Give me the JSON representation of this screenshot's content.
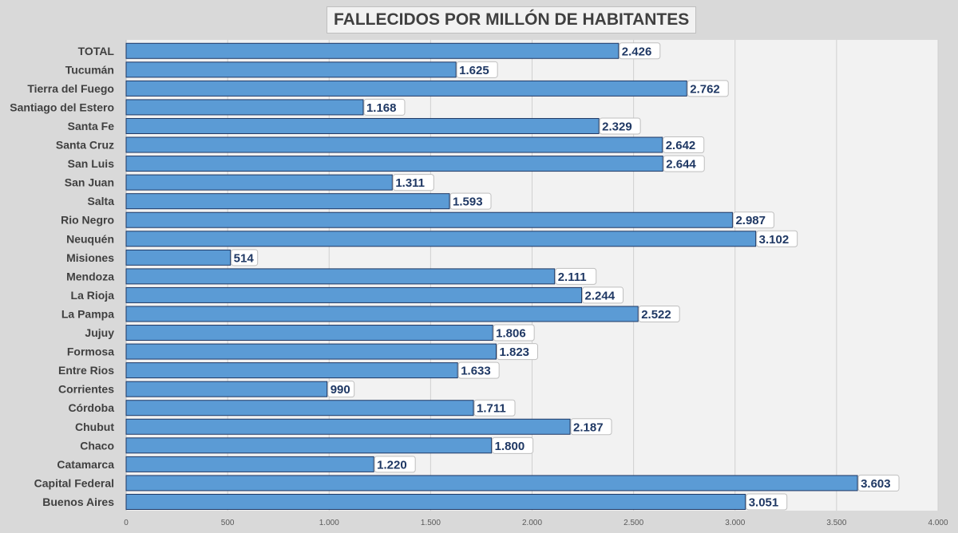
{
  "chart_data": {
    "type": "bar",
    "orientation": "horizontal",
    "title": "FALLECIDOS POR MILLÓN DE HABITANTES",
    "categories": [
      "TOTAL",
      "Tucumán",
      "Tierra del Fuego",
      "Santiago del Estero",
      "Santa Fe",
      "Santa Cruz",
      "San Luis",
      "San Juan",
      "Salta",
      "Rio Negro",
      "Neuquén",
      "Misiones",
      "Mendoza",
      "La Rioja",
      "La Pampa",
      "Jujuy",
      "Formosa",
      "Entre Rios",
      "Corrientes",
      "Córdoba",
      "Chubut",
      "Chaco",
      "Catamarca",
      "Capital Federal",
      "Buenos Aires"
    ],
    "values": [
      2426,
      1625,
      2762,
      1168,
      2329,
      2642,
      2644,
      1311,
      1593,
      2987,
      3102,
      514,
      2111,
      2244,
      2522,
      1806,
      1823,
      1633,
      990,
      1711,
      2187,
      1800,
      1220,
      3603,
      3051
    ],
    "data_labels": [
      "2.426",
      "1.625",
      "2.762",
      "1.168",
      "2.329",
      "2.642",
      "2.644",
      "1.311",
      "1.593",
      "2.987",
      "3.102",
      "514",
      "2.111",
      "2.244",
      "2.522",
      "1.806",
      "1.823",
      "1.633",
      "990",
      "1.711",
      "2.187",
      "1.800",
      "1.220",
      "3.603",
      "3.051"
    ],
    "xlim": [
      0,
      4000
    ],
    "x_ticks": [
      0,
      500,
      1000,
      1500,
      2000,
      2500,
      3000,
      3500,
      4000
    ],
    "x_tick_labels": [
      "0",
      "500",
      "1.000",
      "1.500",
      "2.000",
      "2.500",
      "3.000",
      "3.500",
      "4.000"
    ],
    "grid": true,
    "bar_color": "#5b9bd5",
    "bar_edge_color": "#1f3864",
    "label_color": "#1f3864",
    "plot_background": "#f2f2f2",
    "page_background": "#d9d9d9"
  }
}
